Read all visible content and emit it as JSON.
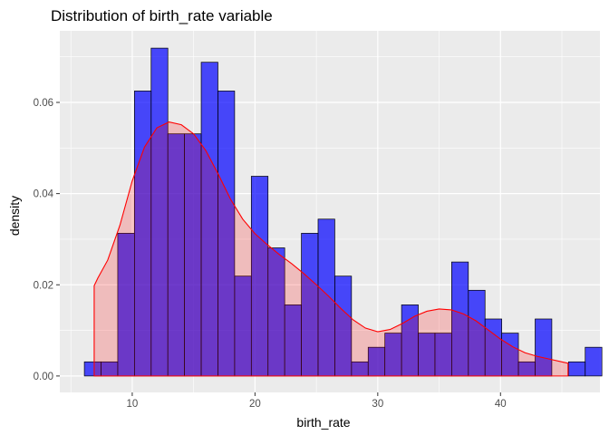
{
  "chart_data": {
    "type": "histogram",
    "title": "Distribution of birth_rate variable",
    "xlabel": "birth_rate",
    "ylabel": "density",
    "xlim": [
      4.1,
      48.1
    ],
    "ylim": [
      -0.0036,
      0.0757
    ],
    "x_ticks": [
      10,
      20,
      30,
      40
    ],
    "x_tick_labels": [
      "10",
      "20",
      "30",
      "40"
    ],
    "y_ticks": [
      0.0,
      0.02,
      0.04,
      0.06
    ],
    "y_tick_labels": [
      "0.00",
      "0.02",
      "0.04",
      "0.06"
    ],
    "grid": true,
    "background": "#ebebeb",
    "bar_color": "#0000ff",
    "bar_alpha": 0.7,
    "bar_outline": "#000000",
    "density_line_color": "#ff0000",
    "density_fill": "#ff0000",
    "density_fill_alpha": 0.2,
    "histogram": {
      "bin_width": 1.36,
      "bins": [
        {
          "x_start": 6.1,
          "density": 0.0031
        },
        {
          "x_start": 7.46,
          "density": 0.0031
        },
        {
          "x_start": 8.82,
          "density": 0.0313
        },
        {
          "x_start": 10.18,
          "density": 0.0625
        },
        {
          "x_start": 11.54,
          "density": 0.0719
        },
        {
          "x_start": 12.9,
          "density": 0.0531
        },
        {
          "x_start": 14.26,
          "density": 0.0531
        },
        {
          "x_start": 15.62,
          "density": 0.0688
        },
        {
          "x_start": 16.98,
          "density": 0.0625
        },
        {
          "x_start": 18.34,
          "density": 0.0219
        },
        {
          "x_start": 19.7,
          "density": 0.0438
        },
        {
          "x_start": 21.06,
          "density": 0.0281
        },
        {
          "x_start": 22.42,
          "density": 0.0156
        },
        {
          "x_start": 23.78,
          "density": 0.0313
        },
        {
          "x_start": 25.14,
          "density": 0.0344
        },
        {
          "x_start": 26.5,
          "density": 0.0219
        },
        {
          "x_start": 27.86,
          "density": 0.0031
        },
        {
          "x_start": 29.22,
          "density": 0.0063
        },
        {
          "x_start": 30.58,
          "density": 0.0094
        },
        {
          "x_start": 31.94,
          "density": 0.0156
        },
        {
          "x_start": 33.3,
          "density": 0.0094
        },
        {
          "x_start": 34.66,
          "density": 0.0094
        },
        {
          "x_start": 36.02,
          "density": 0.025
        },
        {
          "x_start": 37.38,
          "density": 0.0188
        },
        {
          "x_start": 38.74,
          "density": 0.0125
        },
        {
          "x_start": 40.1,
          "density": 0.0094
        },
        {
          "x_start": 41.46,
          "density": 0.0031
        },
        {
          "x_start": 42.82,
          "density": 0.0125
        },
        {
          "x_start": 44.18,
          "density": 0.0
        },
        {
          "x_start": 45.54,
          "density": 0.0031
        },
        {
          "x_start": 46.9,
          "density": 0.0063
        }
      ]
    },
    "density_curve": {
      "x": [
        6.9,
        7.2,
        8,
        9,
        10,
        11,
        12,
        13,
        14,
        15,
        16,
        17,
        18,
        19,
        20,
        21,
        22,
        23,
        24,
        25,
        26,
        27,
        28,
        29,
        30,
        31,
        32,
        33,
        34,
        35,
        36,
        37,
        38,
        39,
        40,
        41,
        42,
        43,
        44,
        45,
        45.5
      ],
      "y": [
        0.0198,
        0.0215,
        0.0254,
        0.0331,
        0.0428,
        0.0502,
        0.0544,
        0.0557,
        0.0551,
        0.0531,
        0.0494,
        0.0443,
        0.0388,
        0.0344,
        0.0312,
        0.0288,
        0.0266,
        0.0246,
        0.0224,
        0.02,
        0.0175,
        0.0148,
        0.0123,
        0.0105,
        0.0097,
        0.0102,
        0.0115,
        0.0131,
        0.0142,
        0.0147,
        0.0145,
        0.0136,
        0.0121,
        0.0101,
        0.0081,
        0.0064,
        0.0051,
        0.0043,
        0.0037,
        0.0031,
        0.0028
      ]
    }
  }
}
